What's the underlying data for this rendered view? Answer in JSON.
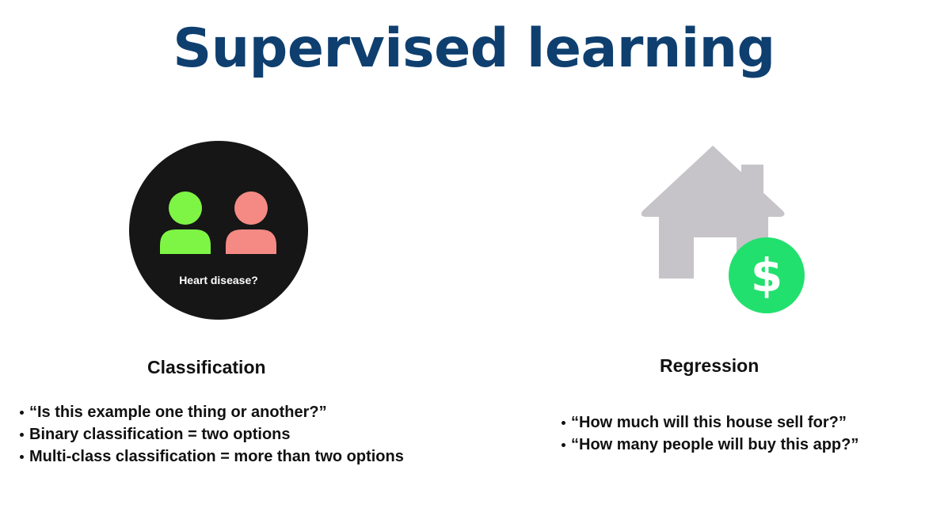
{
  "slide": {
    "title": "Supervised learning"
  },
  "classification": {
    "icon_caption": "Heart disease?",
    "heading": "Classification",
    "bullets": [
      "“Is this example one thing or another?”",
      "Binary classification = two options",
      "Multi-class classification = more than two options"
    ],
    "colors": {
      "circle": "#161616",
      "person_left": "#7ef545",
      "person_right": "#f58a84"
    }
  },
  "regression": {
    "heading": "Regression",
    "icon_symbol": "$",
    "bullets": [
      "“How much will this house sell for?”",
      "“How many people will buy this app?”"
    ],
    "colors": {
      "house": "#c6c4c8",
      "coin": "#22e06e"
    }
  },
  "icons": {
    "classification_icon": "two-people-in-circle-icon",
    "regression_icon": "house-with-dollar-icon"
  }
}
